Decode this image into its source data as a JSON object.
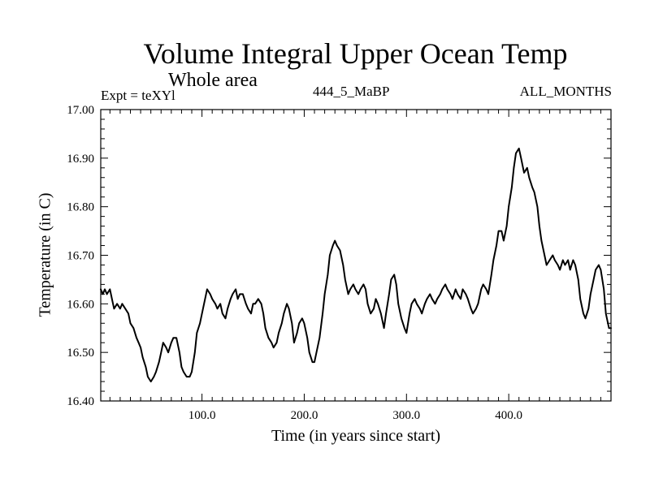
{
  "header": {
    "title": "Volume Integral Upper Ocean Temp",
    "subtitle": "Whole area",
    "expt": "Expt = teXYl",
    "run": "444_5_MaBP",
    "months": "ALL_MONTHS"
  },
  "chart_data": {
    "type": "line",
    "title": "Volume Integral Upper Ocean Temp",
    "subtitle": "Whole area",
    "xlabel": "Time (in years since start)",
    "ylabel": "Temperature (in C)",
    "xlim": [
      1,
      500
    ],
    "ylim": [
      16.4,
      17.0
    ],
    "xticks": [
      100,
      200,
      300,
      400
    ],
    "xtick_labels": [
      "100.0",
      "200.0",
      "300.0",
      "400.0"
    ],
    "yticks": [
      16.4,
      16.5,
      16.6,
      16.7,
      16.8,
      16.9,
      17.0
    ],
    "ytick_labels": [
      "16.40",
      "16.50",
      "16.60",
      "16.70",
      "16.80",
      "16.90",
      "17.00"
    ],
    "grid": false,
    "series": [
      {
        "x": [
          1,
          3,
          5,
          7,
          10,
          12,
          14,
          17,
          20,
          22,
          25,
          28,
          30,
          33,
          36,
          38,
          40,
          42,
          45,
          47,
          50,
          53,
          55,
          58,
          60,
          62,
          65,
          67,
          70,
          72,
          75,
          78,
          80,
          82,
          85,
          88,
          90,
          93,
          95,
          98,
          100,
          103,
          105,
          108,
          110,
          113,
          115,
          118,
          120,
          123,
          125,
          128,
          130,
          133,
          135,
          137,
          140,
          143,
          145,
          148,
          150,
          152,
          155,
          158,
          160,
          162,
          165,
          168,
          170,
          173,
          175,
          178,
          180,
          183,
          185,
          188,
          190,
          193,
          195,
          198,
          200,
          203,
          205,
          208,
          210,
          212,
          215,
          218,
          220,
          223,
          225,
          228,
          230,
          232,
          235,
          238,
          240,
          243,
          245,
          248,
          250,
          253,
          255,
          258,
          260,
          262,
          265,
          268,
          270,
          272,
          275,
          278,
          280,
          283,
          285,
          288,
          290,
          292,
          295,
          298,
          300,
          303,
          305,
          308,
          310,
          313,
          315,
          318,
          320,
          323,
          325,
          328,
          330,
          333,
          335,
          338,
          340,
          343,
          345,
          348,
          350,
          353,
          355,
          358,
          360,
          363,
          365,
          368,
          370,
          373,
          375,
          378,
          380,
          383,
          385,
          388,
          390,
          393,
          395,
          398,
          400,
          403,
          405,
          407,
          410,
          412,
          415,
          418,
          420,
          423,
          425,
          428,
          430,
          432,
          435,
          437,
          440,
          443,
          445,
          448,
          450,
          453,
          455,
          458,
          460,
          463,
          465,
          468,
          470,
          473,
          475,
          478,
          480,
          483,
          485,
          488,
          490,
          493,
          495,
          498,
          500
        ],
        "values": [
          16.63,
          16.62,
          16.63,
          16.62,
          16.63,
          16.61,
          16.59,
          16.6,
          16.59,
          16.6,
          16.59,
          16.58,
          16.56,
          16.55,
          16.53,
          16.52,
          16.51,
          16.49,
          16.47,
          16.45,
          16.44,
          16.45,
          16.46,
          16.48,
          16.5,
          16.52,
          16.51,
          16.5,
          16.52,
          16.53,
          16.53,
          16.5,
          16.47,
          16.46,
          16.45,
          16.45,
          16.46,
          16.5,
          16.54,
          16.56,
          16.58,
          16.61,
          16.63,
          16.62,
          16.61,
          16.6,
          16.59,
          16.6,
          16.58,
          16.57,
          16.59,
          16.61,
          16.62,
          16.63,
          16.61,
          16.62,
          16.62,
          16.6,
          16.59,
          16.58,
          16.6,
          16.6,
          16.61,
          16.6,
          16.58,
          16.55,
          16.53,
          16.52,
          16.51,
          16.52,
          16.54,
          16.56,
          16.58,
          16.6,
          16.59,
          16.56,
          16.52,
          16.54,
          16.56,
          16.57,
          16.56,
          16.53,
          16.5,
          16.48,
          16.48,
          16.5,
          16.53,
          16.58,
          16.62,
          16.66,
          16.7,
          16.72,
          16.73,
          16.72,
          16.71,
          16.68,
          16.65,
          16.62,
          16.63,
          16.64,
          16.63,
          16.62,
          16.63,
          16.64,
          16.63,
          16.6,
          16.58,
          16.59,
          16.61,
          16.6,
          16.58,
          16.55,
          16.58,
          16.62,
          16.65,
          16.66,
          16.64,
          16.6,
          16.57,
          16.55,
          16.54,
          16.58,
          16.6,
          16.61,
          16.6,
          16.59,
          16.58,
          16.6,
          16.61,
          16.62,
          16.61,
          16.6,
          16.61,
          16.62,
          16.63,
          16.64,
          16.63,
          16.62,
          16.61,
          16.63,
          16.62,
          16.61,
          16.63,
          16.62,
          16.61,
          16.59,
          16.58,
          16.59,
          16.6,
          16.63,
          16.64,
          16.63,
          16.62,
          16.66,
          16.69,
          16.72,
          16.75,
          16.75,
          16.73,
          16.76,
          16.8,
          16.84,
          16.88,
          16.91,
          16.92,
          16.9,
          16.87,
          16.88,
          16.86,
          16.84,
          16.83,
          16.8,
          16.76,
          16.73,
          16.7,
          16.68,
          16.69,
          16.7,
          16.69,
          16.68,
          16.67,
          16.69,
          16.68,
          16.69,
          16.67,
          16.69,
          16.68,
          16.65,
          16.61,
          16.58,
          16.57,
          16.59,
          16.62,
          16.65,
          16.67,
          16.68,
          16.67,
          16.63,
          16.58,
          16.55,
          16.55
        ]
      }
    ]
  }
}
